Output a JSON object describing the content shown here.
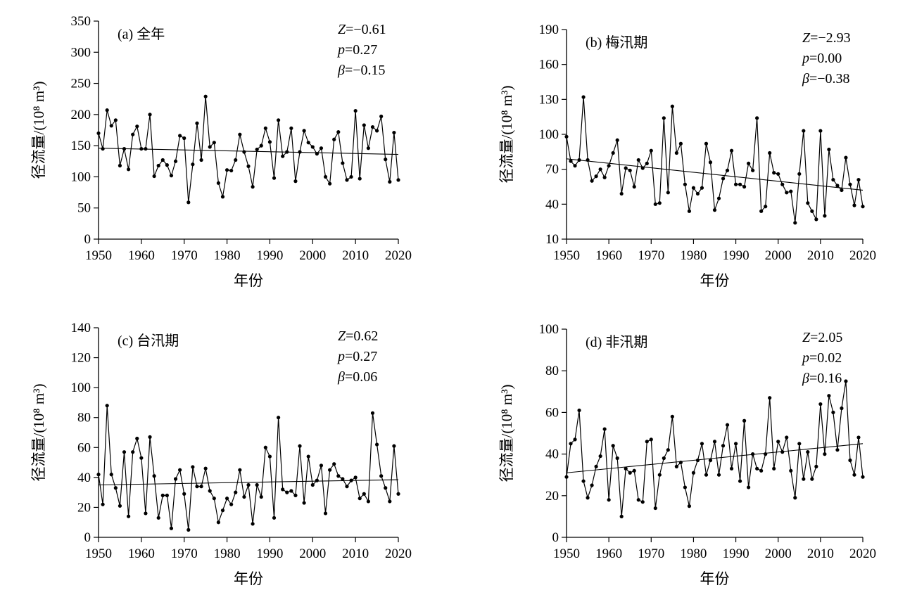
{
  "chart_data": [
    {
      "type": "line",
      "panel_label": "(a) 全年",
      "xlabel": "年份",
      "ylabel": "径流量/(10⁸ m³)",
      "xlim": [
        1950,
        2020
      ],
      "ylim": [
        0,
        350
      ],
      "xticks": [
        1950,
        1960,
        1970,
        1980,
        1990,
        2000,
        2010,
        2020
      ],
      "yticks": [
        0,
        50,
        100,
        150,
        200,
        250,
        300,
        350
      ],
      "stats": {
        "Z": "−0.61",
        "p": "0.27",
        "beta": "−0.15"
      },
      "trend": {
        "x": [
          1950,
          2020
        ],
        "y": [
          146,
          136
        ]
      },
      "series": [
        {
          "x": [
            1950,
            1951,
            1952,
            1953,
            1954,
            1955,
            1956,
            1957,
            1958,
            1959,
            1960,
            1961,
            1962,
            1963,
            1964,
            1965,
            1966,
            1967,
            1968,
            1969,
            1970,
            1971,
            1972,
            1973,
            1974,
            1975,
            1976,
            1977,
            1978,
            1979,
            1980,
            1981,
            1982,
            1983,
            1984,
            1985,
            1986,
            1987,
            1988,
            1989,
            1990,
            1991,
            1992,
            1993,
            1994,
            1995,
            1996,
            1997,
            1998,
            1999,
            2000,
            2001,
            2002,
            2003,
            2004,
            2005,
            2006,
            2007,
            2008,
            2009,
            2010,
            2011,
            2012,
            2013,
            2014,
            2015,
            2016,
            2017,
            2018,
            2019,
            2020
          ],
          "values": [
            170,
            145,
            207,
            182,
            191,
            118,
            145,
            112,
            168,
            181,
            145,
            145,
            200,
            101,
            118,
            127,
            119,
            102,
            125,
            166,
            162,
            59,
            120,
            186,
            127,
            229,
            148,
            155,
            90,
            68,
            111,
            110,
            127,
            168,
            140,
            117,
            84,
            144,
            150,
            178,
            156,
            98,
            191,
            133,
            140,
            178,
            93,
            140,
            174,
            155,
            148,
            137,
            146,
            100,
            89,
            160,
            172,
            122,
            95,
            100,
            206,
            97,
            183,
            146,
            180,
            174,
            197,
            128,
            92,
            171,
            95
          ]
        }
      ]
    },
    {
      "type": "line",
      "panel_label": "(b) 梅汛期",
      "xlabel": "年份",
      "ylabel": "径流量/(10⁸ m³)",
      "xlim": [
        1950,
        2020
      ],
      "ylim": [
        10,
        190
      ],
      "xticks": [
        1950,
        1960,
        1970,
        1980,
        1990,
        2000,
        2010,
        2020
      ],
      "yticks": [
        10,
        40,
        70,
        100,
        130,
        160,
        190
      ],
      "stats": {
        "Z": "−2.93",
        "p": "0.00",
        "beta": "−0.38"
      },
      "trend": {
        "x": [
          1950,
          2020
        ],
        "y": [
          79,
          52
        ]
      },
      "series": [
        {
          "x": [
            1950,
            1951,
            1952,
            1953,
            1954,
            1955,
            1956,
            1957,
            1958,
            1959,
            1960,
            1961,
            1962,
            1963,
            1964,
            1965,
            1966,
            1967,
            1968,
            1969,
            1970,
            1971,
            1972,
            1973,
            1974,
            1975,
            1976,
            1977,
            1978,
            1979,
            1980,
            1981,
            1982,
            1983,
            1984,
            1985,
            1986,
            1987,
            1988,
            1989,
            1990,
            1991,
            1992,
            1993,
            1994,
            1995,
            1996,
            1997,
            1998,
            1999,
            2000,
            2001,
            2002,
            2003,
            2004,
            2005,
            2006,
            2007,
            2008,
            2009,
            2010,
            2011,
            2012,
            2013,
            2014,
            2015,
            2016,
            2017,
            2018,
            2019,
            2020
          ],
          "values": [
            98,
            77,
            73,
            78,
            132,
            78,
            60,
            64,
            70,
            63,
            73,
            84,
            95,
            49,
            71,
            69,
            55,
            78,
            71,
            75,
            86,
            40,
            41,
            114,
            50,
            124,
            84,
            92,
            57,
            34,
            54,
            49,
            54,
            92,
            76,
            35,
            45,
            62,
            69,
            86,
            57,
            57,
            55,
            75,
            69,
            114,
            34,
            38,
            84,
            67,
            66,
            57,
            50,
            51,
            24,
            66,
            103,
            41,
            34,
            27,
            103,
            30,
            87,
            61,
            56,
            52,
            80,
            57,
            39,
            61,
            38
          ]
        }
      ]
    },
    {
      "type": "line",
      "panel_label": "(c) 台汛期",
      "xlabel": "年份",
      "ylabel": "径流量/(10⁸ m³)",
      "xlim": [
        1950,
        2020
      ],
      "ylim": [
        0,
        140
      ],
      "xticks": [
        1950,
        1960,
        1970,
        1980,
        1990,
        2000,
        2010,
        2020
      ],
      "yticks": [
        0,
        20,
        40,
        60,
        80,
        100,
        120,
        140
      ],
      "stats": {
        "Z": "0.62",
        "p": "0.27",
        "beta": "0.06"
      },
      "trend": {
        "x": [
          1950,
          2020
        ],
        "y": [
          35,
          38.5
        ]
      },
      "series": [
        {
          "x": [
            1950,
            1951,
            1952,
            1953,
            1954,
            1955,
            1956,
            1957,
            1958,
            1959,
            1960,
            1961,
            1962,
            1963,
            1964,
            1965,
            1966,
            1967,
            1968,
            1969,
            1970,
            1971,
            1972,
            1973,
            1974,
            1975,
            1976,
            1977,
            1978,
            1979,
            1980,
            1981,
            1982,
            1983,
            1984,
            1985,
            1986,
            1987,
            1988,
            1989,
            1990,
            1991,
            1992,
            1993,
            1994,
            1995,
            1996,
            1997,
            1998,
            1999,
            2000,
            2001,
            2002,
            2003,
            2004,
            2005,
            2006,
            2007,
            2008,
            2009,
            2010,
            2011,
            2012,
            2013,
            2014,
            2015,
            2016,
            2017,
            2018,
            2019,
            2020
          ],
          "values": [
            42,
            22,
            88,
            42,
            33,
            21,
            57,
            14,
            57,
            66,
            53,
            16,
            67,
            41,
            13,
            28,
            28,
            6,
            39,
            45,
            29,
            5,
            47,
            34,
            34,
            46,
            31,
            26,
            10,
            18,
            26,
            22,
            30,
            45,
            27,
            35,
            9,
            35,
            27,
            60,
            54,
            13,
            80,
            32,
            30,
            31,
            28,
            61,
            23,
            54,
            35,
            38,
            48,
            16,
            45,
            49,
            41,
            39,
            34,
            38,
            40,
            26,
            29,
            24,
            83,
            62,
            41,
            33,
            24,
            61,
            29
          ]
        }
      ]
    },
    {
      "type": "line",
      "panel_label": "(d) 非汛期",
      "xlabel": "年份",
      "ylabel": "径流量/(10⁸ m³)",
      "xlim": [
        1950,
        2020
      ],
      "ylim": [
        0,
        100
      ],
      "xticks": [
        1950,
        1960,
        1970,
        1980,
        1990,
        2000,
        2010,
        2020
      ],
      "yticks": [
        0,
        20,
        40,
        60,
        80,
        100
      ],
      "stats": {
        "Z": "2.05",
        "p": "0.02",
        "beta": "0.16"
      },
      "trend": {
        "x": [
          1950,
          2020
        ],
        "y": [
          31,
          45
        ]
      },
      "series": [
        {
          "x": [
            1950,
            1951,
            1952,
            1953,
            1954,
            1955,
            1956,
            1957,
            1958,
            1959,
            1960,
            1961,
            1962,
            1963,
            1964,
            1965,
            1966,
            1967,
            1968,
            1969,
            1970,
            1971,
            1972,
            1973,
            1974,
            1975,
            1976,
            1977,
            1978,
            1979,
            1980,
            1981,
            1982,
            1983,
            1984,
            1985,
            1986,
            1987,
            1988,
            1989,
            1990,
            1991,
            1992,
            1993,
            1994,
            1995,
            1996,
            1997,
            1998,
            1999,
            2000,
            2001,
            2002,
            2003,
            2004,
            2005,
            2006,
            2007,
            2008,
            2009,
            2010,
            2011,
            2012,
            2013,
            2014,
            2015,
            2016,
            2017,
            2018,
            2019,
            2020
          ],
          "values": [
            29,
            45,
            47,
            61,
            27,
            19,
            25,
            34,
            39,
            52,
            18,
            44,
            38,
            10,
            33,
            31,
            32,
            18,
            17,
            46,
            47,
            14,
            30,
            38,
            42,
            58,
            34,
            36,
            24,
            15,
            31,
            37,
            45,
            30,
            37,
            46,
            30,
            44,
            54,
            33,
            45,
            27,
            56,
            24,
            40,
            33,
            32,
            40,
            67,
            33,
            46,
            41,
            48,
            32,
            19,
            45,
            28,
            41,
            28,
            34,
            64,
            40,
            68,
            60,
            42,
            62,
            75,
            37,
            30,
            48,
            29
          ]
        }
      ]
    }
  ]
}
